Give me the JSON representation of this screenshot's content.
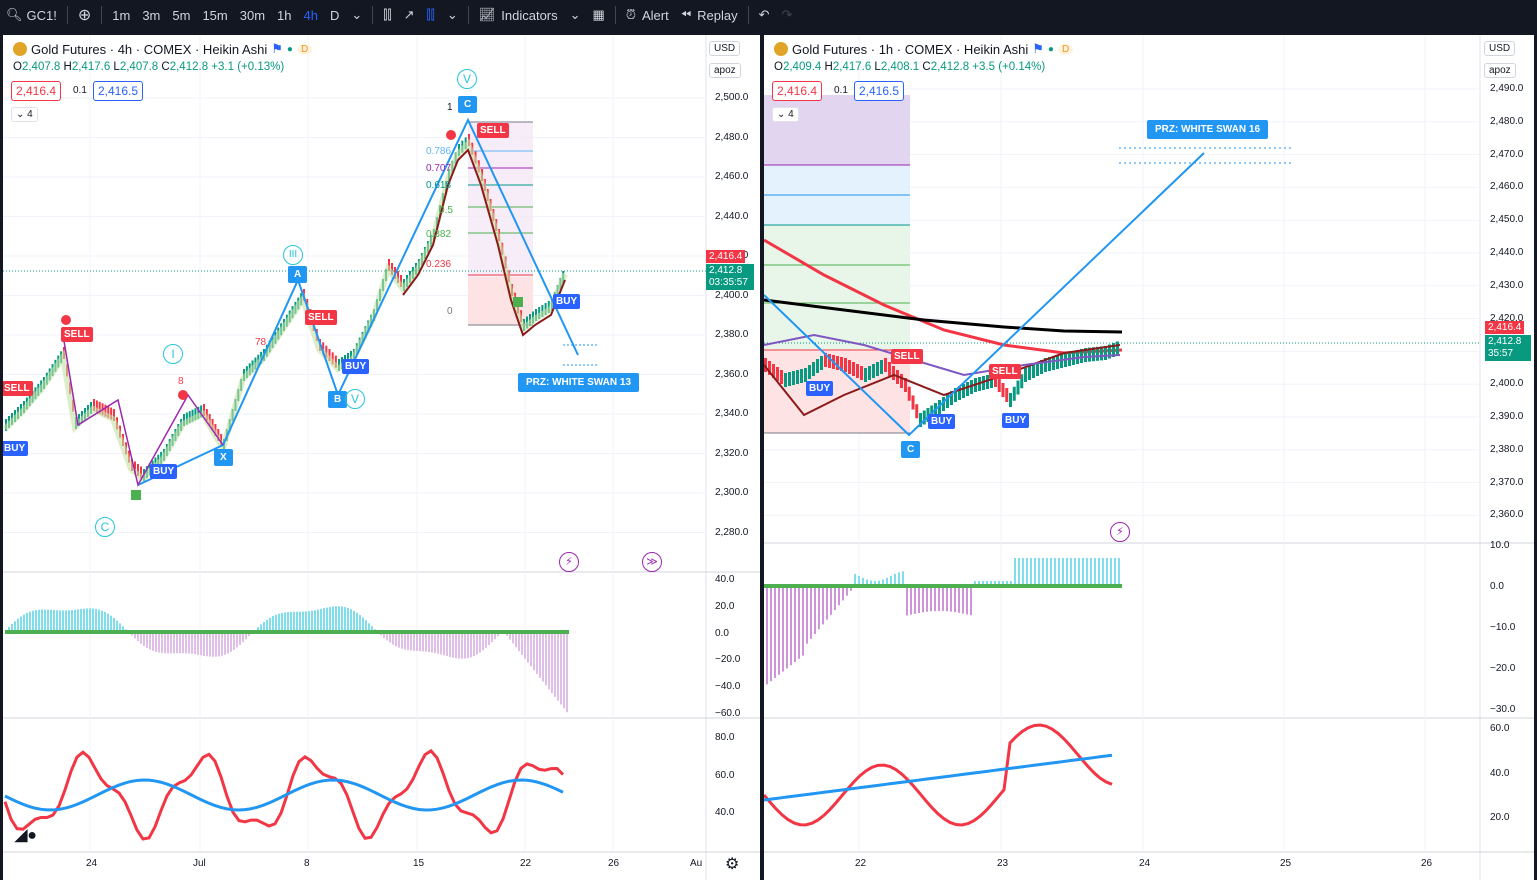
{
  "toolbar": {
    "symbol": "GC1!",
    "intervals": [
      "1m",
      "3m",
      "5m",
      "15m",
      "30m",
      "1h",
      "4h",
      "D"
    ],
    "active_interval": "4h",
    "indicators_label": "Indicators",
    "alert_label": "Alert",
    "replay_label": "Replay"
  },
  "left": {
    "title": "Gold Futures · 4h · COMEX · Heikin Ashi",
    "badge": "D",
    "ohlc": {
      "o": "2,407.8",
      "h": "2,417.6",
      "l": "2,407.8",
      "c": "2,412.8",
      "chg": "+3.1 (+0.13%)"
    },
    "bid": "2,416.4",
    "step": "0.1",
    "ask": "2,416.5",
    "stepper": "4",
    "currency": "USD",
    "scale": "apoz",
    "price_ticks": [
      "2,500.0",
      "2,480.0",
      "2,460.0",
      "2,440.0",
      "2,420.0",
      "2,400.0",
      "2,380.0",
      "2,360.0",
      "2,340.0",
      "2,320.0",
      "2,300.0",
      "2,280.0"
    ],
    "price_tag": "2,416.4",
    "last_tag": "2,412.8",
    "countdown": "03:35:57",
    "osc_ticks": [
      "40.0",
      "20.0",
      "0.0",
      "−20.0",
      "−40.0",
      "−60.0"
    ],
    "rsi_ticks": [
      "80.0",
      "60.0",
      "40.0"
    ],
    "time_ticks": [
      "24",
      "Jul",
      "8",
      "15",
      "22",
      "26",
      "Au"
    ],
    "prz": "PRZ: WHITE SWAN 13",
    "fib": [
      "1",
      "0.786",
      "0.707",
      "0.618",
      "0.5",
      "0.382",
      "0.236",
      "0"
    ],
    "waves": [
      "V",
      "III",
      "I",
      "C",
      "V"
    ],
    "points": [
      "A",
      "B",
      "C",
      "X"
    ],
    "signals": [
      "SELL",
      "SELL",
      "SELL",
      "BUY",
      "BUY",
      "BUY",
      "SELL",
      "BUY"
    ],
    "numbers": [
      "78",
      "8"
    ]
  },
  "right": {
    "title": "Gold Futures · 1h · COMEX · Heikin Ashi",
    "badge": "D",
    "ohlc": {
      "o": "2,409.4",
      "h": "2,417.6",
      "l": "2,408.1",
      "c": "2,412.8",
      "chg": "+3.5 (+0.14%)"
    },
    "bid": "2,416.4",
    "step": "0.1",
    "ask": "2,416.5",
    "stepper": "4",
    "currency": "USD",
    "scale": "apoz",
    "price_ticks": [
      "2,490.0",
      "2,480.0",
      "2,470.0",
      "2,460.0",
      "2,450.0",
      "2,440.0",
      "2,430.0",
      "2,420.0",
      "2,410.0",
      "2,400.0",
      "2,390.0",
      "2,380.0",
      "2,370.0",
      "2,360.0"
    ],
    "price_tag": "2,416.4",
    "last_tag": "2,412.8",
    "countdown": "35:57",
    "osc_ticks": [
      "10.0",
      "0.0",
      "−10.0",
      "−20.0",
      "−30.0"
    ],
    "rsi_ticks": [
      "60.0",
      "40.0",
      "20.0"
    ],
    "time_ticks": [
      "22",
      "23",
      "24",
      "25",
      "26"
    ],
    "prz": "PRZ: WHITE SWAN 16",
    "points": [
      "C"
    ],
    "signals": [
      "BUY",
      "SELL",
      "BUY",
      "SELL",
      "BUY"
    ]
  },
  "colors": {
    "up": "#089981",
    "down": "#f23645",
    "accent": "#2962ff",
    "pattern": "#2196f3",
    "wave": "#26c6da"
  }
}
